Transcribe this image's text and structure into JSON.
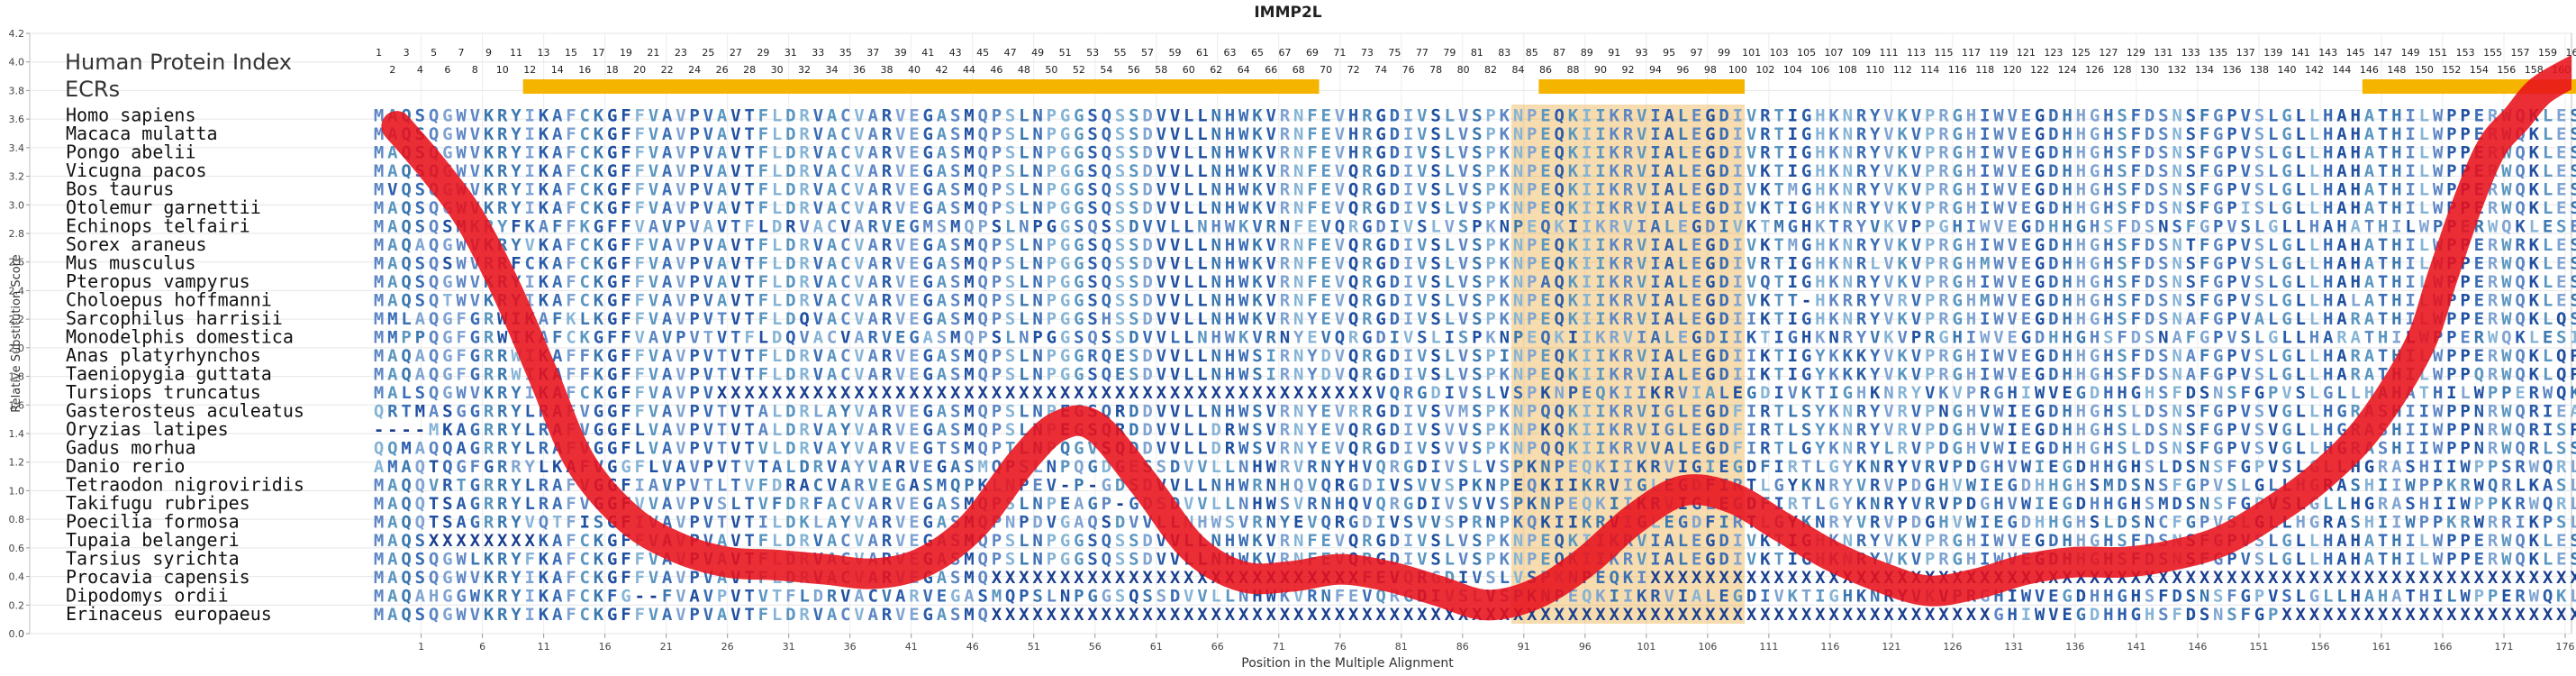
{
  "chart_data": {
    "type": "line",
    "title": "IMMP2L",
    "xlabel": "Position in the Multiple Alignment",
    "ylabel": "Relative Substitution Score",
    "xlim": [
      0,
      176
    ],
    "ylim": [
      0,
      4.2
    ],
    "yticks": [
      0.0,
      0.2,
      0.4,
      0.6,
      0.8,
      1.0,
      1.2,
      1.4,
      1.6,
      1.8,
      2.0,
      2.2,
      2.4,
      2.6,
      2.8,
      3.0,
      3.2,
      3.4,
      3.6,
      3.8,
      4.0,
      4.2
    ],
    "xticks": [
      1,
      6,
      11,
      16,
      21,
      26,
      31,
      36,
      41,
      46,
      51,
      56,
      61,
      66,
      71,
      76,
      81,
      86,
      91,
      96,
      101,
      106,
      111,
      116,
      121,
      126,
      131,
      136,
      141,
      146,
      151,
      156,
      161,
      166,
      171,
      176
    ],
    "grid": true,
    "index_label": "Human Protein Index",
    "ecr_label": "ECRs",
    "ecr_color": "#f4b400",
    "ecr_regions": [
      [
        11,
        68
      ],
      [
        85,
        99
      ],
      [
        145,
        171
      ]
    ],
    "highlight_color": "#e8a22a",
    "highlight_columns": [
      83,
      84,
      85,
      86,
      87,
      88,
      89,
      90,
      91,
      92,
      93,
      94,
      95,
      96,
      97,
      98,
      99,
      170,
      171,
      172
    ],
    "curve_color": "#e8101a",
    "series": [
      {
        "x": [
          -1,
          2,
          5,
          8,
          11,
          14,
          18,
          22,
          26,
          30,
          34,
          38,
          42,
          46,
          50,
          53,
          56,
          60,
          64,
          68,
          72,
          76,
          80,
          84,
          88,
          92,
          96,
          100,
          104,
          108,
          112,
          116,
          120,
          124,
          128,
          132,
          136,
          140,
          144,
          148,
          152,
          156,
          160,
          164,
          166,
          168,
          170,
          172,
          174,
          177
        ],
        "values": [
          3.55,
          3.25,
          2.9,
          2.4,
          1.8,
          1.2,
          0.8,
          0.6,
          0.5,
          0.48,
          0.45,
          0.42,
          0.5,
          0.75,
          1.2,
          1.45,
          1.45,
          1.05,
          0.6,
          0.4,
          0.4,
          0.45,
          0.4,
          0.3,
          0.2,
          0.28,
          0.5,
          0.8,
          1.0,
          0.95,
          0.75,
          0.55,
          0.4,
          0.3,
          0.35,
          0.45,
          0.5,
          0.5,
          0.55,
          0.65,
          0.85,
          1.1,
          1.45,
          2.0,
          2.5,
          3.0,
          3.4,
          3.6,
          3.8,
          3.95
        ]
      }
    ],
    "species": [
      "Homo sapiens",
      "Macaca mulatta",
      "Pongo abelii",
      "Vicugna pacos",
      "Bos taurus",
      "Otolemur garnettii",
      "Echinops telfairi",
      "Sorex araneus",
      "Mus musculus",
      "Pteropus vampyrus",
      "Choloepus hoffmanni",
      "Sarcophilus harrisii",
      "Monodelphis domestica",
      "Anas platyrhynchos",
      "Taeniopygia guttata",
      "Tursiops truncatus",
      "Gasterosteus aculeatus",
      "Oryzias latipes",
      "Gadus morhua",
      "Danio rerio",
      "Tetraodon nigroviridis",
      "Takifugu rubripes",
      "Poecilia formosa",
      "Tupaia belangeri",
      "Tarsius syrichta",
      "Procavia capensis",
      "Dipodomys ordii",
      "Erinaceus europaeus"
    ],
    "sequences": [
      "MAQSQGWVKRYIKAFCKGFFVAVPVAVTFLDRVACVARVEGASMQPSLNPGGSQSSDVVLLNHWKVRNFEVHRGDIVSLVSPKNPEQKIIKRVIALEGDIVRTIGHKNRYVKVPRGHIWVEGDHHGHSFDSNSFGPVSLGLLHAHATHILWPPERWQKLESVLPPERLPVQREEE",
      "MAQSQGWVKRYIKAFCKGFFVAVPVAVTFLDRVACVARVEGASMQPSLNPGGSQSSDVVLLNHWKVRNFEVHRGDIVSLVSPKNPEQKIIKRVIALEGDIVRTIGHKNRYVKVPRGHIWVEGDHHGHSFDSNSFGPVSLGLLHAHATHILWPPERWQKLESVLPPERLPVQREEE",
      "MAQSQGWVKRYIKAFCKGFFVAVPVAVTFLDRVACVARVEGASMQPSLNPGGSQSSDVVLLNHWKVRNFEVHRGDIVSLVSPKNPEQKIIKRVIALEGDIVRTIGHKNRYVKVPRGHIWVEGDHHGHSFDSNSFGPVSLGLLHAHATHILWPPERWQKLESVLPPERLPVQREEE",
      "MAQSQGWVKRYIKAFCKGFFVAVPVAVTFLDRVACVARVEGASMQPSLNPGGSQSSDVVLLNHWKVRNFEVQRGDIVSLVSPKNPEQKIIKRVIALEGDIVKTIGHKNRYVKVPRGHIWVEGDHHGHSFDSNSFGPVSLGLLHAHATHILWPPERWQKLESVLPPERLPVQSEEE",
      "MVQSQGWVKRYIKAFCKGFFVAVPVAVTFLDRVACVARVEGASMQPSLNPGGSQSSDVVLLNHWKVRNFEVQRGDIVSLVSPKNPEQKIIKRVIALEGDIVKTMGHKNRYVKVPRGHIWVEGDHHGHSFDSNSFGPVSLGLLHAHATHILWPPERWQKLESVLPPERLPVQSEEE",
      "MAQSQGWVKRYIKAFCKGFFVAVPVAVTFLDRVACVARVEGASMQPSLNPGGSQSSDVVLLNHWKVRNFEVQRGDIVSLVSPKNPEQKIIKRVIALEGDIVKTIGHKNRYVKVPRGHIWVEGDHHGHSFDSNSFGPISLGLLHAHATHILWPPERWQKLESVLPPERLPVQSEEE",
      "MAQSQSMKRYFKAFFKGFFVAVPVAVTFLDRVACVARVEGMSMQPSLNPGGSQSSDVVLLNHWKVRNFEVQRGDIVSLVSPKNPEQKIIKRVIALEGDIVKTMGHKTRYVKVPPGHIWVEGDHHGHSFDSNSFGPVSLGLLHAHATHILWPPERWQKLESEFLPPERLPVQSTED",
      "MAQAQGWVKRYVKAFCKGFFVAVPVAVTFLDRVACVARVEGASMQPSLNPGGSQSSDVVLLNHWKVRNFEVQRGDIVSLVSPKNPEQKIIKRVIALEGDIVKTMGHKNRYVKVPRGHIWVEGDHHGHSFDSNTFGPVSLGLLHAHATHILWPPERWRKLESELPPERLPVQSED-",
      "MAQSQSWVRRFCKAFCKGFFVAVPVAVTFLDRVACVARVEGASMQPSLNPGGSQSSDVVLLNHWKVRNFEVQRGDIVSLVSPKNPEQKIIKRVIALEGDIVRTIGHKNRLVKVPRGHMWVEGDHHGHSFDSNSFGPVSLGLLHAHATHILWPPERWQKLESVLPPERLPLQTGEK",
      "MAQSQGWVKRYIKAFCKGFFVAVPVAVTFLDRVACVARVEGASMQPSLNPGGSQSSDVVLLNHWKVRNFEVQRGDIVSLVSPKNPAQKIIKRVIALEGDIVQTIGHKNRYVKVPRGHIWVEGDHHGHSFDSNSFGPVSLGLLHAHATHILWPPERWQKLESVLPPERLPVQSEEE",
      "MAQSQTWVKRYIKAFCKGFFVAVPVAVTFLDRVACVARVEGASMQPSLNPGGSQSSDVVLLNHWKVRNFEVQRGDIVSLVSPKNPEQKIIKRVIALEGDIVKTT-HKRRYVRVPRGHMWVEGDHHGHSFDSNSFGPVSLGLLHALATHILWPPERWQKLESVLPPERLPVQSEEE",
      "MMLAQGFGRWIKAFKLKGFFVAVPVTVTFLDQVACVARVEGASMQPSLNPGGSHSSDVVLLNHWKVRNYEVQRGDIVSLVSPKNPEQKIIKRVIALEGDIIKTIGHKNRYVKVPRGHIWVEGDHHGHSFDSNAFGPVALGLLHARATHILWPPERWQKLQSVLPPERLPVQTEEN",
      "MMPPQGFGRWIKAFCKGFFVAVPVTVTFLDQVACVARVEGASMQPSLNPGGSQSSDVVLLNHWKVRNYEVQRGDIVSLISPKNPEQKIIKRVIALEGDIIKTIGHKNRYVKVPRGHIWVEGDHHGHSFDSNAFGPVSLGLLHARATHILWPPERWQKLESILPPERLPAVQMEEK",
      "MAQAQGFGRRWIKAFFKGFFVAVPVTVTFLDRVACVARVEGASMQPSLNPGGRQESDVVLLNHWSIRNYDVQRGDIVSLVSPINPEQKIIKRVIALEGDIIKTIGYKKKYVKVPRGHIWVEGDHHGHSFDSNAFGPVSLGLLHARATHILWPPERWQKLQPILPPERLPLKQEQE",
      "MAQAQGFGRRWIKAFFKGFFVAVPVTVTFLDRVACVARVEGASMQPSLNPGGSQESDVVLLNHWSIRNYDVQRGDIVSLVSPKNPEQKIIKRVIALEGDIIKTIGYKKKYVKVPRGHIWVEGDHHGHSFDSNAFGPVSLGLLHARATHILWPPQRWQKLQPMLPPERLPVKREQE",
      "MALSQGWVKRYIKAFCKGFFVAVPVXXXXXXXXXXXXXXXXXXXXXXXXXXXXXXXXXXXXXXXXXXXXXXXXVQRGDIVSLVSPKNPEQKIIKRVIALEGDIVKTIGHKNRYVKVPRGHIWVEGDHHGHSFDSNSFGPVSLGLLHAHATHILWPPERWQKLESVLPPERLPVIQSEEE",
      "QRTMASGGRRYLRAFVGGFFVAVPVTVTALDRLAYVARVEGASMQPSLNPEGSQRDDVVLLNHWSVRNYEVRRGDIVSVMSPKNPQQKIIKRVIGLEGDFIRTLSYKNRYVRVPNGHVWIEGDHHGHSLDSNSFGPVSVGLLHGRASHIIWPPNRWQRIEALPADRGPLDTEEE",
      "----MKAGRRYLRAFVGGFLVAVPVTVTALDRVAYVARVEGASMQPSLNPEGSQRDDVVLLDRWSVRNYEVQRGDIVSVVSPKNPKQKIIKRVIGLEGDFIRTLSYKNRYVRVPDGHVWIEGDHHGHSLDSNSFGPVSVGLLHGRASHIIWPPNRWQRISPPPHRGPLETEEE",
      "QQMAQQAGRRYLRAFVGGFLVAVPVTVTVLDRVAYVARVEGTSMQPTLNPQGVSQDDVVLLDRWSVRNYEVQRGDIVSVVSPKNPQQKIIKRVVALEGDFIRTLGYKNRYLRVPDGHVWIEGDHHGHSLDSNSFGPVSVGLLHGRASHIIWPPNRWQRLSSLPEDRGPLLSSHA",
      "AMAQTQGFGRRYLKAFVGGFLVAVPVTVTALDRVAYVARVEGASMQPSLNPQGDGESSDVVLLNHWRVRNYHVQRGDIVSLVSPKNPEQKIIKRVIGIEGDFIRTLGYKNRYVRVPDGHVWIEGDHHGHSLDSNSFGPVSLGLLHGRASHIIWPPSRWQRLSPSVPPDRLLNWDR",
      "MAQQVRTGRRYLRAFVGGFIAVPVTLTVFDRACVARVEGASMQPKLNPEV-P-GDSDVVLLNHWRNHQVQRGDIVSVVSPKNPEQKIIKRVIGLEGDFIRTLGYKNRYVRVPDGHVWIEGDHHGHSMDSNSFGPVSLGLLHGRASHIIWPPKRWQRLKASLPPNRGPVDWEEE",
      "MAQQTSAGRRYLRAFVGGFVVAVPVSLTVFDRFACVARVEGASMQPSLNPEAGP-GDSDVVLLNHWSVRNHQVQRGDIVSVVSPKNPEQKIIKRVIGLEGDFIRTLGYKNRYVRVPDGHVWIEGDHHGHSMDSNSFGPVSLGLLHGRASHIIWPPKRWQRLKAEVMPPLRGPVDWEEE",
      "MAQQTSAGRRYVQTFISGFIVAVPVTVTILDKLAYVARVEGASMQPNPDVGAQSDVVLLNHWSVRNYEVQRGDIVSVVSPRNPKQKIIKRVIGLEGDFIRTLGYKNRYVRVPDGHVWIEGDHHGHSLDSNCFGPVSLGLLHGRASHIIWPPKRWRRIKPSLPPERLPLDAEED",
      "MAQSXXXXXXXXKAFCKGFFVAVPVAVTFLDRVACVARVEGASMQPSLNPGGSQSSDVVLLNHWKVRNFEVQRGDIVSLVSPKNPEQKIIKRVIALEGDIVKTIGHKNRYVKVPRGHIWVEGDHHGHSFDSNSFGPVSLGLLHAHATHILWPPERWQKLESVLPPERLPVQSEEE",
      "MAQSQGWLKRYFKAFCKGFFVAVPVAVTFLDRVACVARVEGASMQPSLNPGGSQSSDVVLLNHWKVRNFEVQRGDIVSLVSPKNPEQKIIKRVIALEGDIVKTIGHKNRYVKVPRGHIWVEGDHHGHSFDSNSFGPVSLGLLHAHATHILWPPERWQKLESVLPPERLPVQSEEE",
      "MAQSQGWVKRYIKAFCKGFFVAVPVAVTFLDRVACVARVEGASMQXXXXXXXXXXXXXXXXXXXXXXXXXXXFEVQRGDIVSLVSPKNPEQKIXXXXXXXXXXXXXXXXXXXXXXXXXXXXXXXXXXXXXXXXXXXXXXXXXXXXXXXXXXXXXXXXXXXXXXXXXXXXXVQREEE",
      "MAQAHGGWKRYIKAFCKFG--FVAVPVTVTFLDRVACVARVEGASMQPSLNPGGSQSSDVVLLNHWKVRNFEVQRGDIVSLVSPKNPEQKIIKRVIALEGDIVKTIGHKNRYVKVPRGHIWVEGDHHGHSFDSNSFGPVSLGLLHAHATHILWPPERWQKLESVLPPERLPVQREEE",
      "MAQSQGWVKRYIKAFCKGFFVAVPVAVTFLDRVACVARVEGASMQXXXXXXXXXXXXXXXXXXXXXXXXXXXXXXXXXXXXXXXXXXXXXXXXXXXXXXXXXXXXXXXXXXXXXXXXXGHIWVEGDHHGHSFDSNSFGPXXXXXXXXXXXXXXXXXXXXXXXXXXXXXXXXXXXXVQREEE"
    ]
  }
}
